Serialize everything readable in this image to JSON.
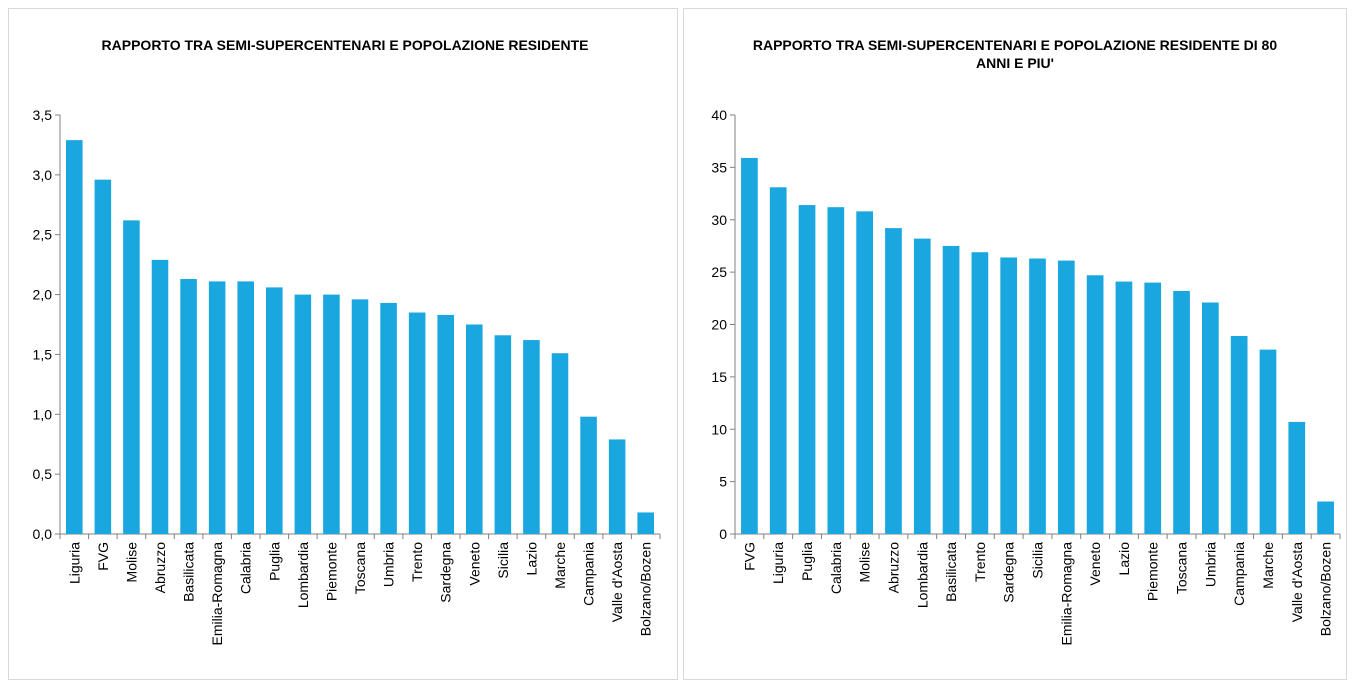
{
  "chart_data": [
    {
      "type": "bar",
      "title": "RAPPORTO TRA SEMI-SUPERCENTENARI E POPOLAZIONE RESIDENTE",
      "categories": [
        "Liguria",
        "FVG",
        "Molise",
        "Abruzzo",
        "Basilicata",
        "Emilia-Romagna",
        "Calabria",
        "Puglia",
        "Lombardia",
        "Piemonte",
        "Toscana",
        "Umbria",
        "Trento",
        "Sardegna",
        "Veneto",
        "Sicilia",
        "Lazio",
        "Marche",
        "Campania",
        "Valle d'Aosta",
        "Bolzano/Bozen"
      ],
      "values": [
        3.29,
        2.96,
        2.62,
        2.29,
        2.13,
        2.11,
        2.11,
        2.06,
        2.0,
        2.0,
        1.96,
        1.93,
        1.85,
        1.83,
        1.75,
        1.66,
        1.62,
        1.51,
        0.98,
        0.79,
        0.18
      ],
      "color": "#1aa7df",
      "ylim": [
        0,
        3.5
      ],
      "yticks": [
        {
          "value": 0,
          "label": "0,0"
        },
        {
          "value": 0.5,
          "label": "0,5"
        },
        {
          "value": 1,
          "label": "1,0"
        },
        {
          "value": 1.5,
          "label": "1,5"
        },
        {
          "value": 2,
          "label": "2,0"
        },
        {
          "value": 2.5,
          "label": "2,5"
        },
        {
          "value": 3,
          "label": "3,0"
        },
        {
          "value": 3.5,
          "label": "3,5"
        }
      ],
      "grid": false
    },
    {
      "type": "bar",
      "title": "RAPPORTO TRA SEMI-SUPERCENTENARI E POPOLAZIONE RESIDENTE DI 80 ANNI E PIU'",
      "categories": [
        "FVG",
        "Liguria",
        "Puglia",
        "Calabria",
        "Molise",
        "Abruzzo",
        "Lombardia",
        "Basilicata",
        "Trento",
        "Sardegna",
        "Sicilia",
        "Emilia-Romagna",
        "Veneto",
        "Lazio",
        "Piemonte",
        "Toscana",
        "Umbria",
        "Campania",
        "Marche",
        "Valle d'Aosta",
        "Bolzano/Bozen"
      ],
      "values": [
        35.9,
        33.1,
        31.4,
        31.2,
        30.8,
        29.2,
        28.2,
        27.5,
        26.9,
        26.4,
        26.3,
        26.1,
        24.7,
        24.1,
        24.0,
        23.2,
        22.1,
        18.9,
        17.6,
        10.7,
        3.1
      ],
      "color": "#1aa7df",
      "ylim": [
        0,
        40
      ],
      "yticks": [
        0,
        5,
        10,
        15,
        20,
        25,
        30,
        35,
        40
      ],
      "grid": false
    }
  ]
}
